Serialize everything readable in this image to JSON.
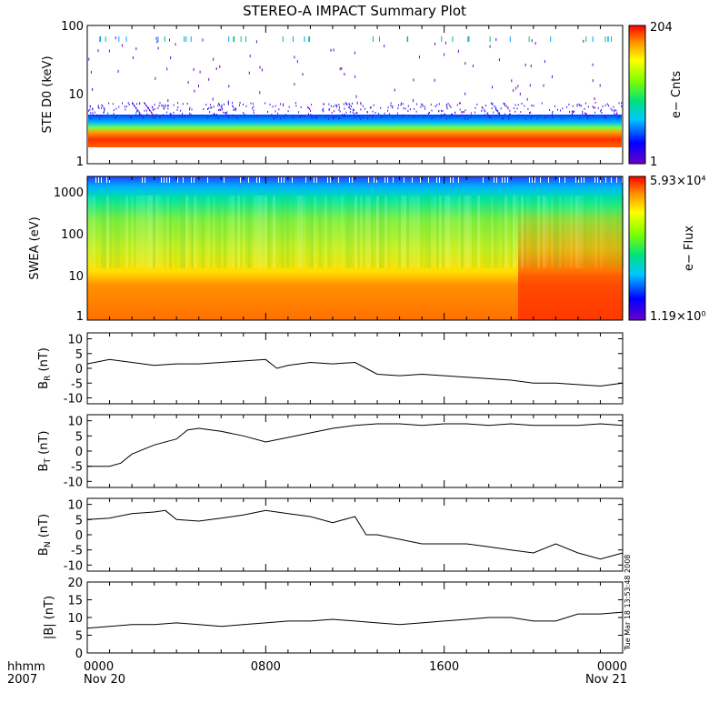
{
  "title": "STEREO-A IMPACT Summary Plot",
  "corner": {
    "hhmm": "hhmm",
    "year": "2007"
  },
  "timestamp": "Tue Mar 18 13:53:48 2008",
  "colors": {
    "line": "#000000",
    "background": "#ffffff"
  },
  "chart_data": [
    {
      "id": "ste",
      "type": "heatmap",
      "ylabel": "STE D0 (keV)",
      "yscale": "log",
      "ylim": [
        1,
        100
      ],
      "yticks": [
        "100",
        "10",
        "1"
      ],
      "colorbar": {
        "label": "e− Cnts",
        "max": "204",
        "min": "1"
      },
      "summary": {
        "core_band_keV": [
          2,
          3
        ],
        "noise_floor_keV": 4,
        "sporadic_counts_up_to_keV": 100
      }
    },
    {
      "id": "swea",
      "type": "heatmap",
      "ylabel": "SWEA (eV)",
      "yscale": "log",
      "ylim": [
        1,
        2000
      ],
      "yticks": [
        "1000",
        "100",
        "10",
        "1"
      ],
      "colorbar": {
        "label": "e− Flux",
        "max": "5.93×10⁴",
        "min": "1.19×10⁰"
      },
      "summary": {
        "peak_flux_below_eV": 15,
        "high_flux_extends_late_day": true
      }
    },
    {
      "id": "br",
      "type": "line",
      "ylabel": "B_R (nT)",
      "ylim": [
        -12,
        12
      ],
      "yticks": [
        10,
        5,
        0,
        -5,
        -10
      ],
      "x_hours": [
        0,
        1,
        2,
        3,
        4,
        5,
        6,
        7,
        8,
        8.5,
        9,
        10,
        11,
        12,
        12.5,
        13,
        14,
        15,
        16,
        17,
        18,
        19,
        20,
        21,
        22,
        23,
        24
      ],
      "values": [
        1.5,
        3,
        2,
        1,
        1.5,
        1.5,
        2,
        2.5,
        3,
        0,
        1,
        2,
        1.5,
        2,
        0,
        -2,
        -2.5,
        -2,
        -2.5,
        -3,
        -3.5,
        -4,
        -5,
        -5,
        -5.5,
        -6,
        -5
      ]
    },
    {
      "id": "bt",
      "type": "line",
      "ylabel": "B_T (nT)",
      "ylim": [
        -12,
        12
      ],
      "yticks": [
        10,
        5,
        0,
        -5,
        -10
      ],
      "x_hours": [
        0,
        1,
        1.5,
        2,
        3,
        4,
        4.5,
        5,
        6,
        7,
        8,
        9,
        10,
        11,
        12,
        13,
        14,
        15,
        16,
        17,
        18,
        19,
        20,
        21,
        22,
        23,
        24
      ],
      "values": [
        -5,
        -5,
        -4,
        -1,
        2,
        4,
        7,
        7.5,
        6.5,
        5,
        3,
        4.5,
        6,
        7.5,
        8.5,
        9,
        9,
        8.5,
        9,
        9,
        8.5,
        9,
        8.5,
        8.5,
        8.5,
        9,
        8.5
      ]
    },
    {
      "id": "bn",
      "type": "line",
      "ylabel": "B_N (nT)",
      "ylim": [
        -12,
        12
      ],
      "yticks": [
        10,
        5,
        0,
        -5,
        -10
      ],
      "x_hours": [
        0,
        1,
        2,
        3,
        3.5,
        4,
        5,
        6,
        7,
        8,
        9,
        10,
        11,
        12,
        12.5,
        13,
        14,
        15,
        16,
        17,
        18,
        19,
        20,
        21,
        22,
        23,
        24
      ],
      "values": [
        5,
        5.5,
        7,
        7.5,
        8,
        5,
        4.5,
        5.5,
        6.5,
        8,
        7,
        6,
        4,
        6,
        0,
        0,
        -1.5,
        -3,
        -3,
        -3,
        -4,
        -5,
        -6,
        -3,
        -6,
        -8,
        -6
      ]
    },
    {
      "id": "bmag",
      "type": "line",
      "ylabel": "|B| (nT)",
      "ylim": [
        0,
        20
      ],
      "yticks": [
        20,
        15,
        10,
        5,
        0
      ],
      "x_hours": [
        0,
        1,
        2,
        3,
        4,
        5,
        6,
        7,
        8,
        9,
        10,
        11,
        12,
        13,
        14,
        15,
        16,
        17,
        18,
        19,
        20,
        21,
        22,
        23,
        24
      ],
      "values": [
        7,
        7.5,
        8,
        8,
        8.5,
        8,
        7.5,
        8,
        8.5,
        9,
        9,
        9.5,
        9,
        8.5,
        8,
        8.5,
        9,
        9.5,
        10,
        10,
        9,
        9,
        11,
        11,
        11.5
      ]
    }
  ],
  "xaxis": {
    "ticks": [
      {
        "hour": 0,
        "label": "0000",
        "sublabel": "Nov 20"
      },
      {
        "hour": 8,
        "label": "0800",
        "sublabel": ""
      },
      {
        "hour": 16,
        "label": "1600",
        "sublabel": ""
      },
      {
        "hour": 24,
        "label": "0000",
        "sublabel": "Nov 21"
      }
    ],
    "range_hours": [
      0,
      24
    ]
  }
}
